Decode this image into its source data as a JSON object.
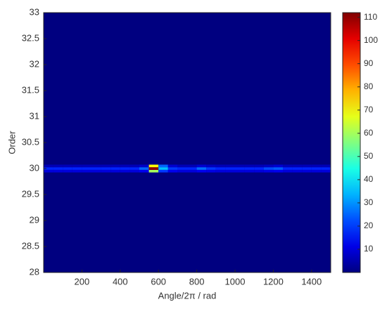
{
  "chart_data": {
    "type": "heatmap",
    "x_label": "Angle/2π / rad",
    "y_label": "Order",
    "x": [
      25,
      75,
      125,
      175,
      225,
      275,
      325,
      375,
      425,
      475,
      525,
      575,
      625,
      675,
      725,
      775,
      825,
      875,
      925,
      975,
      1025,
      1075,
      1125,
      1175,
      1225,
      1275,
      1325,
      1375,
      1425,
      1475
    ],
    "y": [
      29.95,
      30.0,
      30.05
    ],
    "z": [
      [
        10,
        10,
        10,
        10,
        10,
        10,
        10,
        10,
        10,
        10,
        12,
        60,
        20,
        12,
        10,
        10,
        12,
        11,
        10,
        10,
        10,
        10,
        10,
        11,
        12,
        10,
        10,
        10,
        10,
        10
      ],
      [
        18,
        18,
        18,
        18,
        18,
        18,
        18,
        18,
        18,
        18,
        25,
        110,
        35,
        20,
        18,
        18,
        26,
        20,
        18,
        18,
        18,
        18,
        18,
        22,
        24,
        18,
        18,
        18,
        18,
        18
      ],
      [
        6,
        6,
        6,
        6,
        6,
        6,
        6,
        6,
        6,
        6,
        8,
        70,
        25,
        9,
        6,
        6,
        9,
        7,
        6,
        6,
        6,
        6,
        6,
        7,
        9,
        6,
        6,
        6,
        6,
        6
      ]
    ],
    "xlim": [
      0,
      1500
    ],
    "xticks": [
      200,
      400,
      600,
      800,
      1000,
      1200,
      1400
    ],
    "ylim": [
      28,
      33
    ],
    "yticks": [
      28,
      28.5,
      29,
      29.5,
      30,
      30.5,
      31,
      31.5,
      32,
      32.5,
      33
    ],
    "clim": [
      0,
      112
    ],
    "cticks": [
      10,
      20,
      30,
      40,
      50,
      60,
      70,
      80,
      90,
      100,
      110
    ],
    "colormap": "jet"
  }
}
